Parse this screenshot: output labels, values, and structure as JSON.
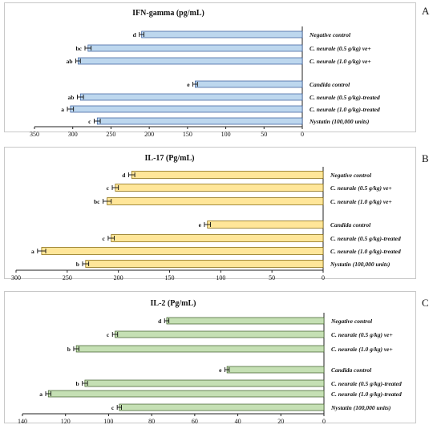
{
  "chart_data": [
    {
      "type": "bar",
      "panel_letter": "A",
      "title": "IFN-gamma (pg/mL)",
      "categories": [
        "Negative control",
        "C. neurale (0.5 g/kg) ve+",
        "C. neurale (1.0 g/kg) ve+",
        "Candida control",
        "C. neurale (0.5 g/kg)-treated",
        "C. neurale (1.0 g/kg)-treated",
        "Nystatin (100,000 units)"
      ],
      "values": [
        210,
        280,
        293,
        140,
        290,
        303,
        268
      ],
      "errors": [
        3,
        4,
        3,
        3,
        4,
        4,
        4
      ],
      "letters": [
        "d",
        "bc",
        "ab",
        "e",
        "ab",
        "a",
        "c"
      ],
      "xlim": [
        350,
        0
      ],
      "ticks": [
        350,
        300,
        250,
        200,
        150,
        100,
        50,
        0
      ],
      "orientation": "horizontal-reversed",
      "bar_color": "#bdd7ee",
      "bar_edge": "#2f5597"
    },
    {
      "type": "bar",
      "panel_letter": "B",
      "title": "IL-17 (Pg/mL)",
      "categories": [
        "Negative control",
        "C. neurale (0.5 g/kg) ve+",
        "C. neurale (1.0 g/kg) ve+",
        "Candida control",
        "C. neurale (0.5 g/kg)-treated",
        "C. neurale (1.0 g/kg)-treated",
        "Nystatin (100,000 units)"
      ],
      "values": [
        187,
        203,
        211,
        113,
        207,
        275,
        232
      ],
      "errors": [
        3,
        3,
        4,
        3,
        3,
        4,
        3
      ],
      "letters": [
        "d",
        "c",
        "bc",
        "e",
        "c",
        "a",
        "b"
      ],
      "xlim": [
        300,
        0
      ],
      "ticks": [
        300,
        250,
        200,
        150,
        100,
        50,
        0
      ],
      "orientation": "horizontal-reversed",
      "bar_color": "#ffe699",
      "bar_edge": "#7f6000"
    },
    {
      "type": "bar",
      "panel_letter": "C",
      "title": "IL-2 (Pg/mL)",
      "categories": [
        "Negative control",
        "C. neurale (0.5 g/kg) ve+",
        "C. neurale (1.0 g/kg) ve+",
        "Candida control",
        "C. neurale (0.5 g/kg)-treated",
        "C. neurale (1.0 g/kg)-treated",
        "Nystatin (100,000 units)"
      ],
      "values": [
        73,
        97,
        115,
        45,
        111,
        128,
        95
      ],
      "errors": [
        1,
        1.2,
        1.2,
        1,
        1.2,
        1.2,
        1
      ],
      "letters": [
        "d",
        "c",
        "b",
        "e",
        "b",
        "a",
        "c"
      ],
      "xlim": [
        140,
        0
      ],
      "ticks": [
        140,
        120,
        100,
        80,
        60,
        40,
        20,
        0
      ],
      "orientation": "horizontal-reversed",
      "bar_color": "#c5e0b4",
      "bar_edge": "#385723"
    }
  ]
}
